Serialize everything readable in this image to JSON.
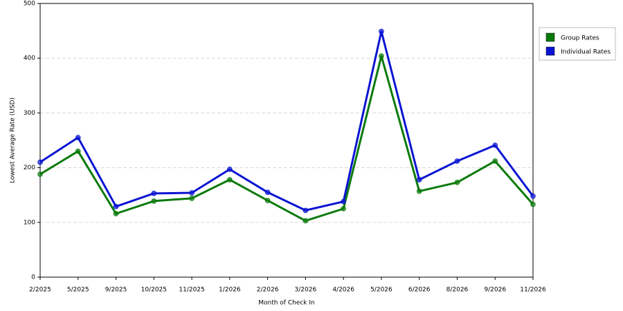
{
  "chart_data": {
    "type": "line",
    "y_label": "Lowest Average Rate (USD)",
    "x_label": "Month of Check In",
    "categories": [
      "2/2025",
      "5/2025",
      "9/2025",
      "10/2025",
      "11/2025",
      "1/2026",
      "2/2026",
      "3/2026",
      "4/2026",
      "5/2026",
      "6/2026",
      "8/2026",
      "9/2026",
      "11/2026"
    ],
    "series": [
      {
        "name": "Group Rates",
        "color": "#0a7a0a",
        "values": [
          188,
          230,
          116,
          139,
          144,
          178,
          140,
          103,
          125,
          404,
          157,
          173,
          212,
          133
        ]
      },
      {
        "name": "Individual Rates",
        "color": "#0a14d2",
        "values": [
          210,
          255,
          129,
          153,
          154,
          197,
          155,
          122,
          138,
          449,
          178,
          212,
          241,
          148
        ]
      }
    ],
    "ylim": [
      0,
      500
    ],
    "yticks": [
      0,
      100,
      200,
      300,
      400,
      500
    ],
    "grid": true,
    "legend": "right"
  }
}
